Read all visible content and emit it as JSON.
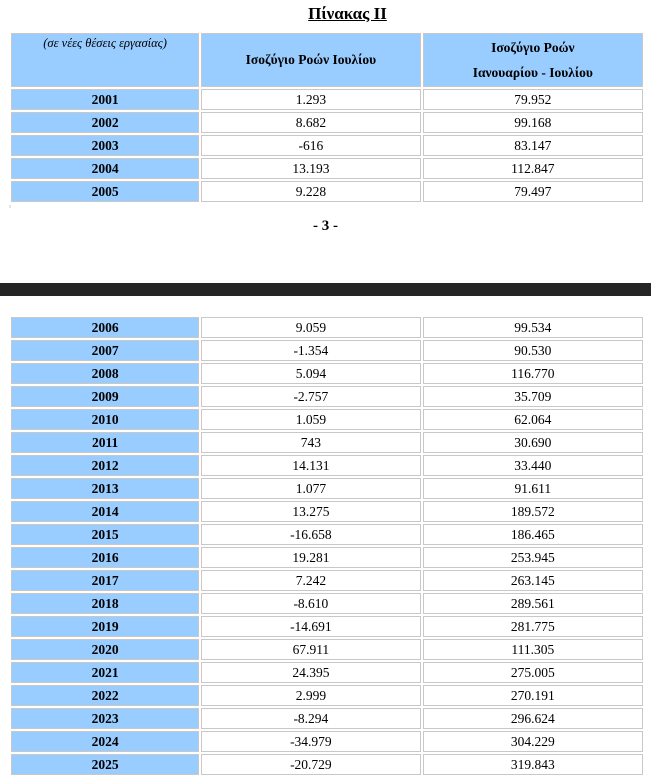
{
  "title": "Πίνακας ΙΙ",
  "header": {
    "corner": "(σε νέες θέσεις εργασίας)",
    "col_a": "Ισοζύγιο Ροών Ιουλίου",
    "col_b_line1": "Ισοζύγιο Ροών",
    "col_b_line2": "Ιανουαρίου -  Ιουλίου"
  },
  "page_number": "- 3 -",
  "rows_top": [
    {
      "year": "2001",
      "a": "1.293",
      "b": "79.952"
    },
    {
      "year": "2002",
      "a": "8.682",
      "b": "99.168"
    },
    {
      "year": "2003",
      "a": "-616",
      "b": "83.147"
    },
    {
      "year": "2004",
      "a": "13.193",
      "b": "112.847"
    },
    {
      "year": "2005",
      "a": "9.228",
      "b": "79.497"
    }
  ],
  "rows_bottom": [
    {
      "year": "2006",
      "a": "9.059",
      "b": "99.534"
    },
    {
      "year": "2007",
      "a": "-1.354",
      "b": "90.530"
    },
    {
      "year": "2008",
      "a": "5.094",
      "b": "116.770"
    },
    {
      "year": "2009",
      "a": "-2.757",
      "b": "35.709"
    },
    {
      "year": "2010",
      "a": "1.059",
      "b": "62.064"
    },
    {
      "year": "2011",
      "a": "743",
      "b": "30.690"
    },
    {
      "year": "2012",
      "a": "14.131",
      "b": "33.440"
    },
    {
      "year": "2013",
      "a": "1.077",
      "b": "91.611"
    },
    {
      "year": "2014",
      "a": "13.275",
      "b": "189.572"
    },
    {
      "year": "2015",
      "a": "-16.658",
      "b": "186.465"
    },
    {
      "year": "2016",
      "a": "19.281",
      "b": "253.945"
    },
    {
      "year": "2017",
      "a": "7.242",
      "b": "263.145"
    },
    {
      "year": "2018",
      "a": "-8.610",
      "b": "289.561"
    },
    {
      "year": "2019",
      "a": "-14.691",
      "b": "281.775"
    },
    {
      "year": "2020",
      "a": "67.911",
      "b": "111.305"
    },
    {
      "year": "2021",
      "a": "24.395",
      "b": "275.005"
    },
    {
      "year": "2022",
      "a": "2.999",
      "b": "270.191"
    },
    {
      "year": "2023",
      "a": "-8.294",
      "b": "296.624"
    },
    {
      "year": "2024",
      "a": "-34.979",
      "b": "304.229"
    },
    {
      "year": "2025",
      "a": "-20.729",
      "b": "319.843"
    }
  ],
  "colors": {
    "header_bg": "#99ccff",
    "divider": "#252525"
  }
}
